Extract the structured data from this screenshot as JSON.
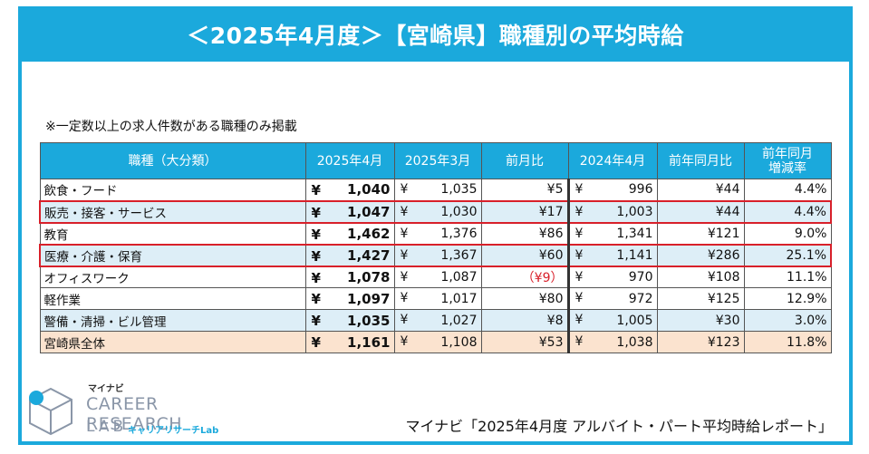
{
  "title": "＜2025年4月度＞【宮崎県】職種別の平均時給",
  "note": "※一定数以上の求人件数がある職種のみ掲載",
  "table": {
    "headers": [
      "職種（大分類）",
      "2025年4月",
      "2025年3月",
      "前月比",
      "2024年4月",
      "前年同月比",
      "前年同月",
      "増減率"
    ],
    "currency": "¥",
    "rows": [
      {
        "category": "飲食・フード",
        "apr2025": "1,040",
        "mar2025": "1,035",
        "mom": "¥5",
        "apr2024": "996",
        "yoy": "¥44",
        "rate": "4.4%"
      },
      {
        "category": "販売・接客・サービス",
        "apr2025": "1,047",
        "mar2025": "1,030",
        "mom": "¥17",
        "apr2024": "1,003",
        "yoy": "¥44",
        "rate": "4.4%"
      },
      {
        "category": "教育",
        "apr2025": "1,462",
        "mar2025": "1,376",
        "mom": "¥86",
        "apr2024": "1,341",
        "yoy": "¥121",
        "rate": "9.0%"
      },
      {
        "category": "医療・介護・保育",
        "apr2025": "1,427",
        "mar2025": "1,367",
        "mom": "¥60",
        "apr2024": "1,141",
        "yoy": "¥286",
        "rate": "25.1%"
      },
      {
        "category": "オフィスワーク",
        "apr2025": "1,078",
        "mar2025": "1,087",
        "mom": "（¥9）",
        "apr2024": "970",
        "yoy": "¥108",
        "rate": "11.1%"
      },
      {
        "category": "軽作業",
        "apr2025": "1,097",
        "mar2025": "1,017",
        "mom": "¥80",
        "apr2024": "972",
        "yoy": "¥125",
        "rate": "12.9%"
      },
      {
        "category": "警備・清掃・ビル管理",
        "apr2025": "1,035",
        "mar2025": "1,027",
        "mom": "¥8",
        "apr2024": "1,005",
        "yoy": "¥30",
        "rate": "3.0%"
      },
      {
        "category": "宮崎県全体",
        "apr2025": "1,161",
        "mar2025": "1,108",
        "mom": "¥53",
        "apr2024": "1,038",
        "yoy": "¥123",
        "rate": "11.8%"
      }
    ]
  },
  "logo": {
    "small": "マイナビ",
    "main": "CAREER RESEARCH",
    "lab": "LAB",
    "sub": "キャリアリサーチLab"
  },
  "source": "マイナビ「2025年4月度 アルバイト・パート平均時給レポート」",
  "colors": {
    "accent": "#1ba9dc",
    "highlight": "#d8202a",
    "alt_row": "#ddeef7",
    "total_row": "#fbe3cf"
  }
}
